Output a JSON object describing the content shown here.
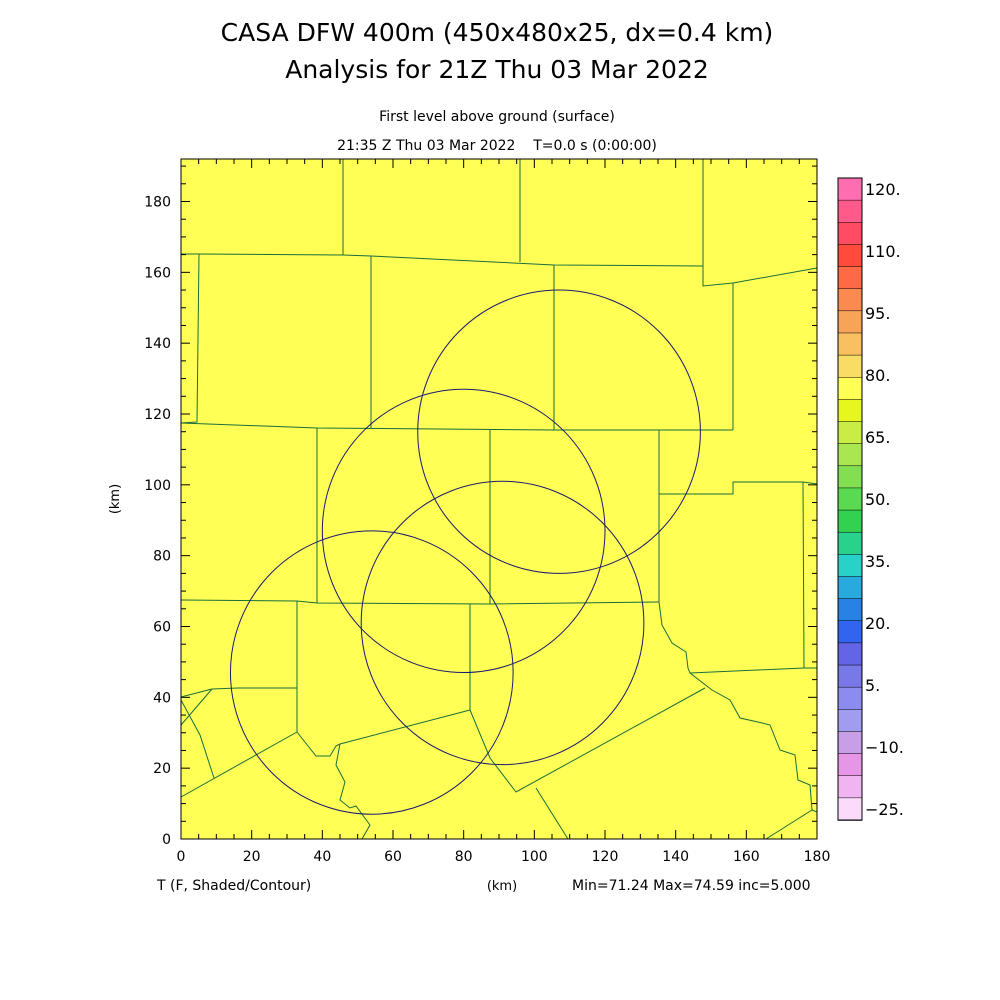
{
  "header": {
    "title_line1": "CASA DFW 400m (450x480x25, dx=0.4 km)",
    "title_line2": "Analysis for 21Z Thu 03 Mar 2022",
    "subtitle_line1": "First level above ground (surface)",
    "subtitle_line2": "21:35 Z Thu 03 Mar 2022    T=0.0 s (0:00:00)"
  },
  "footer": {
    "variable_label": "T (F, Shaded/Contour)",
    "x_unit_label": "(km)",
    "stats": "Min=71.24 Max=74.59 inc=5.000"
  },
  "chart_data": {
    "type": "heatmap",
    "field_fill_color": "#ffff55",
    "ylabel": "(km)",
    "xlim": [
      0,
      180
    ],
    "ylim": [
      0,
      192
    ],
    "x_ticks": [
      "0",
      "20",
      "40",
      "60",
      "80",
      "100",
      "120",
      "140",
      "160",
      "180"
    ],
    "y_ticks": [
      "0",
      "20",
      "40",
      "60",
      "80",
      "100",
      "120",
      "140",
      "160",
      "180"
    ],
    "min": 71.24,
    "max": 74.59,
    "inc": 5.0,
    "radar_ranges": [
      {
        "center_km": [
          107,
          115
        ],
        "radius_km": 40
      },
      {
        "center_km": [
          80,
          87
        ],
        "radius_km": 40
      },
      {
        "center_km": [
          91,
          61
        ],
        "radius_km": 40
      },
      {
        "center_km": [
          54,
          47
        ],
        "radius_km": 40
      }
    ],
    "colorbar": {
      "labels": [
        "120.",
        "110.",
        "95.",
        "80.",
        "65.",
        "50.",
        "35.",
        "20.",
        "5.",
        "−10.",
        "−25."
      ],
      "colors": [
        "#ff6eb0",
        "#ff5a8a",
        "#ff4c64",
        "#ff4a3c",
        "#ff6a46",
        "#fb8a50",
        "#f8a458",
        "#f8c060",
        "#f8dc64",
        "#ffff55",
        "#e6f71e",
        "#c8ee46",
        "#aae650",
        "#82e050",
        "#5ada50",
        "#32d250",
        "#28d28c",
        "#28d2c8",
        "#28aade",
        "#2882e6",
        "#3264f0",
        "#6464e6",
        "#7878e6",
        "#8c8cf0",
        "#a09cf0",
        "#c89ee6",
        "#e696e6",
        "#f0b4f0",
        "#fadcfa"
      ]
    }
  }
}
